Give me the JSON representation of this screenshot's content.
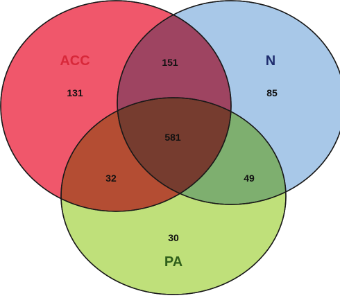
{
  "sets": {
    "acc": {
      "label": "ACC",
      "fill": "#f0576b",
      "label_color": "#d8283a"
    },
    "n": {
      "label": "N",
      "fill": "#a8c8e8",
      "label_color": "#1f2d6e"
    },
    "pa": {
      "label": "PA",
      "fill": "#bfe07a",
      "label_color": "#2f5f1a"
    }
  },
  "regions": {
    "acc_only": "131",
    "n_only": "85",
    "pa_only": "30",
    "acc_n": "151",
    "acc_pa": "32",
    "n_pa": "49",
    "all": "581"
  }
}
